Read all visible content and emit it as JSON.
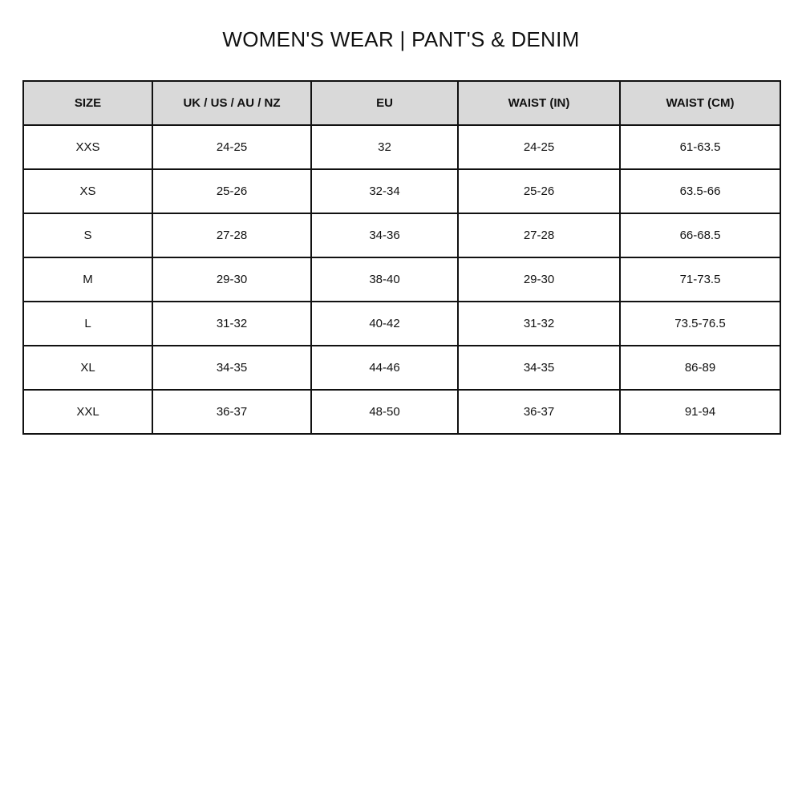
{
  "title": "WOMEN'S WEAR | PANT'S & DENIM",
  "header_bg": "#d9d9d9",
  "table": {
    "headers": [
      "SIZE",
      "UK / US / AU / NZ",
      "EU",
      "WAIST (IN)",
      "WAIST (CM)"
    ],
    "rows": [
      [
        "XXS",
        "24-25",
        "32",
        "24-25",
        "61-63.5"
      ],
      [
        "XS",
        "25-26",
        "32-34",
        "25-26",
        "63.5-66"
      ],
      [
        "S",
        "27-28",
        "34-36",
        "27-28",
        "66-68.5"
      ],
      [
        "M",
        "29-30",
        "38-40",
        "29-30",
        "71-73.5"
      ],
      [
        "L",
        "31-32",
        "40-42",
        "31-32",
        "73.5-76.5"
      ],
      [
        "XL",
        "34-35",
        "44-46",
        "34-35",
        "86-89"
      ],
      [
        "XXL",
        "36-37",
        "48-50",
        "36-37",
        "91-94"
      ]
    ]
  }
}
